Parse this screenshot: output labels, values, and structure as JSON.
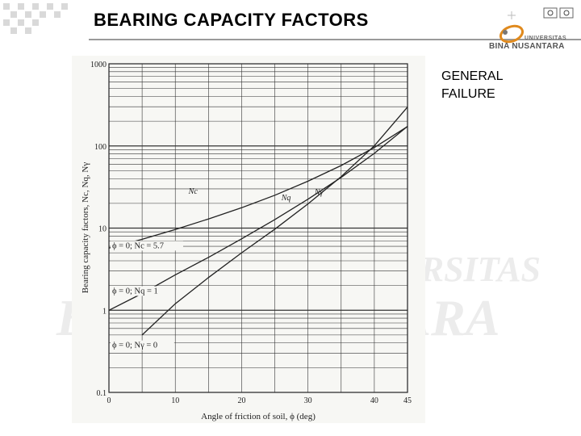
{
  "slide": {
    "title": "BEARING CAPACITY FACTORS",
    "note_lines": [
      "GENERAL",
      "FAILURE"
    ],
    "logo": {
      "line1": "UNIVERSITAS",
      "line2": "BINA NUSANTARA",
      "icon": "university-logo-icon"
    },
    "watermark_lines": [
      "UNIVERSITAS",
      "BINA NUSANTARA"
    ]
  },
  "chart_data": {
    "type": "line",
    "title": "",
    "xlabel": "Angle of friction of soil, ϕ (deg)",
    "ylabel": "Bearing capacity factors, Nc, Nq, Nγ",
    "xlim": [
      0,
      45
    ],
    "ylim": [
      0.1,
      1000
    ],
    "yscale": "log",
    "x_ticks": [
      "0",
      "10",
      "20",
      "30",
      "40",
      "45"
    ],
    "y_ticks": [
      "0.1",
      "1",
      "10",
      "100",
      "1000"
    ],
    "grid": true,
    "series": [
      {
        "name": "Nc",
        "x": [
          0,
          5,
          10,
          15,
          20,
          25,
          30,
          35,
          40,
          45
        ],
        "y": [
          5.7,
          7.3,
          9.6,
          12.9,
          17.7,
          25.1,
          37.2,
          57.8,
          95.7,
          172.3
        ]
      },
      {
        "name": "Nq",
        "x": [
          0,
          5,
          10,
          15,
          20,
          25,
          30,
          35,
          40,
          45
        ],
        "y": [
          1.0,
          1.6,
          2.7,
          4.4,
          7.4,
          12.7,
          22.5,
          41.4,
          81.3,
          173.3
        ]
      },
      {
        "name": "Nγ",
        "x": [
          5,
          10,
          15,
          20,
          25,
          30,
          35,
          40,
          45
        ],
        "y": [
          0.5,
          1.2,
          2.5,
          5.0,
          9.7,
          19.7,
          42.4,
          100.4,
          297.5
        ]
      }
    ],
    "annotations": [
      "ϕ = 0; Nc = 5.7",
      "ϕ = 0; Nq = 1",
      "ϕ = 0; Nγ = 0"
    ]
  }
}
